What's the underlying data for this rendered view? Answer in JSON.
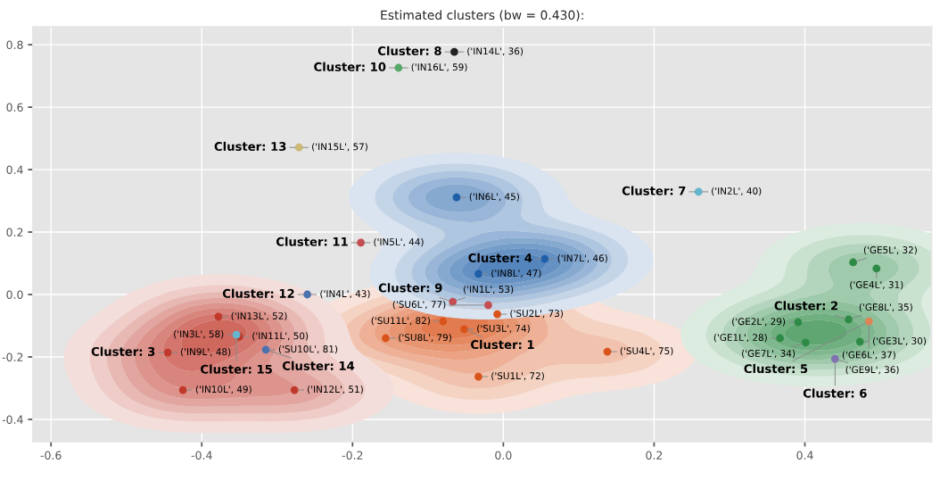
{
  "chart_data": {
    "type": "scatter",
    "title": "Estimated clusters (bw = 0.430):",
    "series": [
      {
        "color": "#d9541a",
        "x": [
          -0.156,
          -0.08,
          -0.052,
          -0.008,
          0.138,
          -0.033
        ],
        "values": [
          -0.14,
          -0.086,
          -0.111,
          -0.063,
          -0.183,
          -0.263
        ]
      },
      {
        "color": "#2e8b47",
        "x": [
          0.464,
          0.495,
          0.391,
          0.458,
          0.367,
          0.401,
          0.473
        ],
        "values": [
          0.103,
          0.083,
          -0.089,
          -0.08,
          -0.14,
          -0.154,
          -0.151
        ]
      },
      {
        "color": "#c0392b",
        "x": [
          -0.378,
          -0.445,
          -0.425,
          -0.277,
          -0.35
        ],
        "values": [
          -0.071,
          -0.186,
          -0.306,
          -0.306,
          -0.135
        ]
      },
      {
        "color": "#1f5fa8",
        "x": [
          -0.062,
          0.055,
          -0.033
        ],
        "values": [
          0.311,
          0.114,
          0.066
        ]
      },
      {
        "colors": [
          "#64b5cd",
          "#4c72b0",
          "#4c72b0",
          "#c44e52",
          "#ccb974",
          "#55a868",
          "#222222",
          "#c44e52",
          "#c44e52",
          "#64b5cd",
          "#dd8452",
          "#8172b2"
        ],
        "x": [
          -0.354,
          -0.315,
          -0.26,
          -0.189,
          -0.271,
          -0.139,
          -0.065,
          -0.067,
          -0.02,
          0.259,
          0.485,
          0.44
        ],
        "values": [
          -0.129,
          -0.177,
          0.0,
          0.166,
          0.471,
          0.726,
          0.777,
          -0.023,
          -0.034,
          0.329,
          -0.086,
          -0.206
        ]
      }
    ],
    "annotations": [
      {
        "text": "('SU8L', 79)",
        "x": -0.156,
        "y": -0.14
      },
      {
        "text": "('SU11L', 82)",
        "x": -0.08,
        "y": -0.086
      },
      {
        "text": "('SU3L', 74)",
        "x": -0.052,
        "y": -0.111
      },
      {
        "text": "('SU2L', 73)",
        "x": -0.008,
        "y": -0.063
      },
      {
        "text": "('SU4L', 75)",
        "x": 0.138,
        "y": -0.183
      },
      {
        "text": "('SU1L', 72)",
        "x": -0.033,
        "y": -0.263
      },
      {
        "text": "('GE5L', 32)",
        "x": 0.464,
        "y": 0.103
      },
      {
        "text": "('GE4L', 31)",
        "x": 0.495,
        "y": 0.083
      },
      {
        "text": "('GE2L', 29)",
        "x": 0.391,
        "y": -0.089
      },
      {
        "text": "('GE8L', 35)",
        "x": 0.458,
        "y": -0.08
      },
      {
        "text": "('GE1L', 28)",
        "x": 0.367,
        "y": -0.14
      },
      {
        "text": "('GE7L', 34)",
        "x": 0.401,
        "y": -0.154
      },
      {
        "text": "('GE3L', 30)",
        "x": 0.473,
        "y": -0.151
      },
      {
        "text": "('IN13L', 52)",
        "x": -0.378,
        "y": -0.071
      },
      {
        "text": "('IN9L', 48)",
        "x": -0.445,
        "y": -0.186
      },
      {
        "text": "('IN10L', 49)",
        "x": -0.425,
        "y": -0.306
      },
      {
        "text": "('IN12L', 51)",
        "x": -0.277,
        "y": -0.306
      },
      {
        "text": "('IN11L', 50)",
        "x": -0.35,
        "y": -0.135
      },
      {
        "text": "('IN6L', 45)",
        "x": -0.062,
        "y": 0.311
      },
      {
        "text": "('IN7L', 46)",
        "x": 0.055,
        "y": 0.114
      },
      {
        "text": "('IN8L', 47)",
        "x": -0.033,
        "y": 0.066
      },
      {
        "text": "('IN3L', 58)",
        "x": -0.354,
        "y": -0.129
      },
      {
        "text": "('SU10L', 81)",
        "x": -0.315,
        "y": -0.177
      },
      {
        "text": "('IN4L', 43)",
        "x": -0.26,
        "y": 0.0
      },
      {
        "text": "('IN5L', 44)",
        "x": -0.189,
        "y": 0.166
      },
      {
        "text": "('IN15L', 57)",
        "x": -0.271,
        "y": 0.471
      },
      {
        "text": "('IN16L', 59)",
        "x": -0.139,
        "y": 0.726
      },
      {
        "text": "('IN14L', 36)",
        "x": -0.065,
        "y": 0.777
      },
      {
        "text": "('IN1L', 53)",
        "x": -0.067,
        "y": -0.023
      },
      {
        "text": "('SU6L', 77)",
        "x": -0.02,
        "y": -0.034
      },
      {
        "text": "('IN2L', 40)",
        "x": 0.259,
        "y": 0.329
      },
      {
        "text": "('GE6L', 37)",
        "x": 0.485,
        "y": -0.086
      },
      {
        "text": "('GE9L', 36)",
        "x": 0.44,
        "y": -0.206
      },
      {
        "text": "Cluster: 8",
        "x": -0.065,
        "y": 0.777
      },
      {
        "text": "Cluster: 10",
        "x": -0.139,
        "y": 0.726
      },
      {
        "text": "Cluster: 13",
        "x": -0.271,
        "y": 0.471
      },
      {
        "text": "Cluster: 11",
        "x": -0.189,
        "y": 0.166
      },
      {
        "text": "Cluster: 4",
        "x": 0.055,
        "y": 0.114
      },
      {
        "text": "Cluster: 7",
        "x": 0.259,
        "y": 0.329
      },
      {
        "text": "Cluster: 12",
        "x": -0.26,
        "y": 0.0
      },
      {
        "text": "Cluster: 9",
        "x": -0.067,
        "y": -0.023
      },
      {
        "text": "Cluster: 1",
        "x": -0.052,
        "y": -0.111
      },
      {
        "text": "Cluster: 15",
        "x": -0.354,
        "y": -0.129
      },
      {
        "text": "Cluster: 3",
        "x": -0.445,
        "y": -0.186
      },
      {
        "text": "Cluster: 14",
        "x": -0.315,
        "y": -0.177
      },
      {
        "text": "Cluster: 2",
        "x": 0.458,
        "y": -0.08
      },
      {
        "text": "Cluster: 5",
        "x": 0.485,
        "y": -0.086
      },
      {
        "text": "Cluster: 6",
        "x": 0.44,
        "y": -0.206
      }
    ],
    "xlim": [
      -0.624,
      0.568
    ],
    "ylim": [
      -0.471,
      0.857
    ],
    "xticks": [
      -0.6,
      -0.4,
      -0.2,
      {
        "value": 0,
        "label": "0.0"
      },
      0.2,
      0.4
    ],
    "yticks": [
      -0.4,
      -0.2,
      {
        "value": 0,
        "label": "0.0"
      },
      0.2,
      0.4,
      0.6,
      0.8
    ],
    "grid": true,
    "marker": "circle"
  }
}
